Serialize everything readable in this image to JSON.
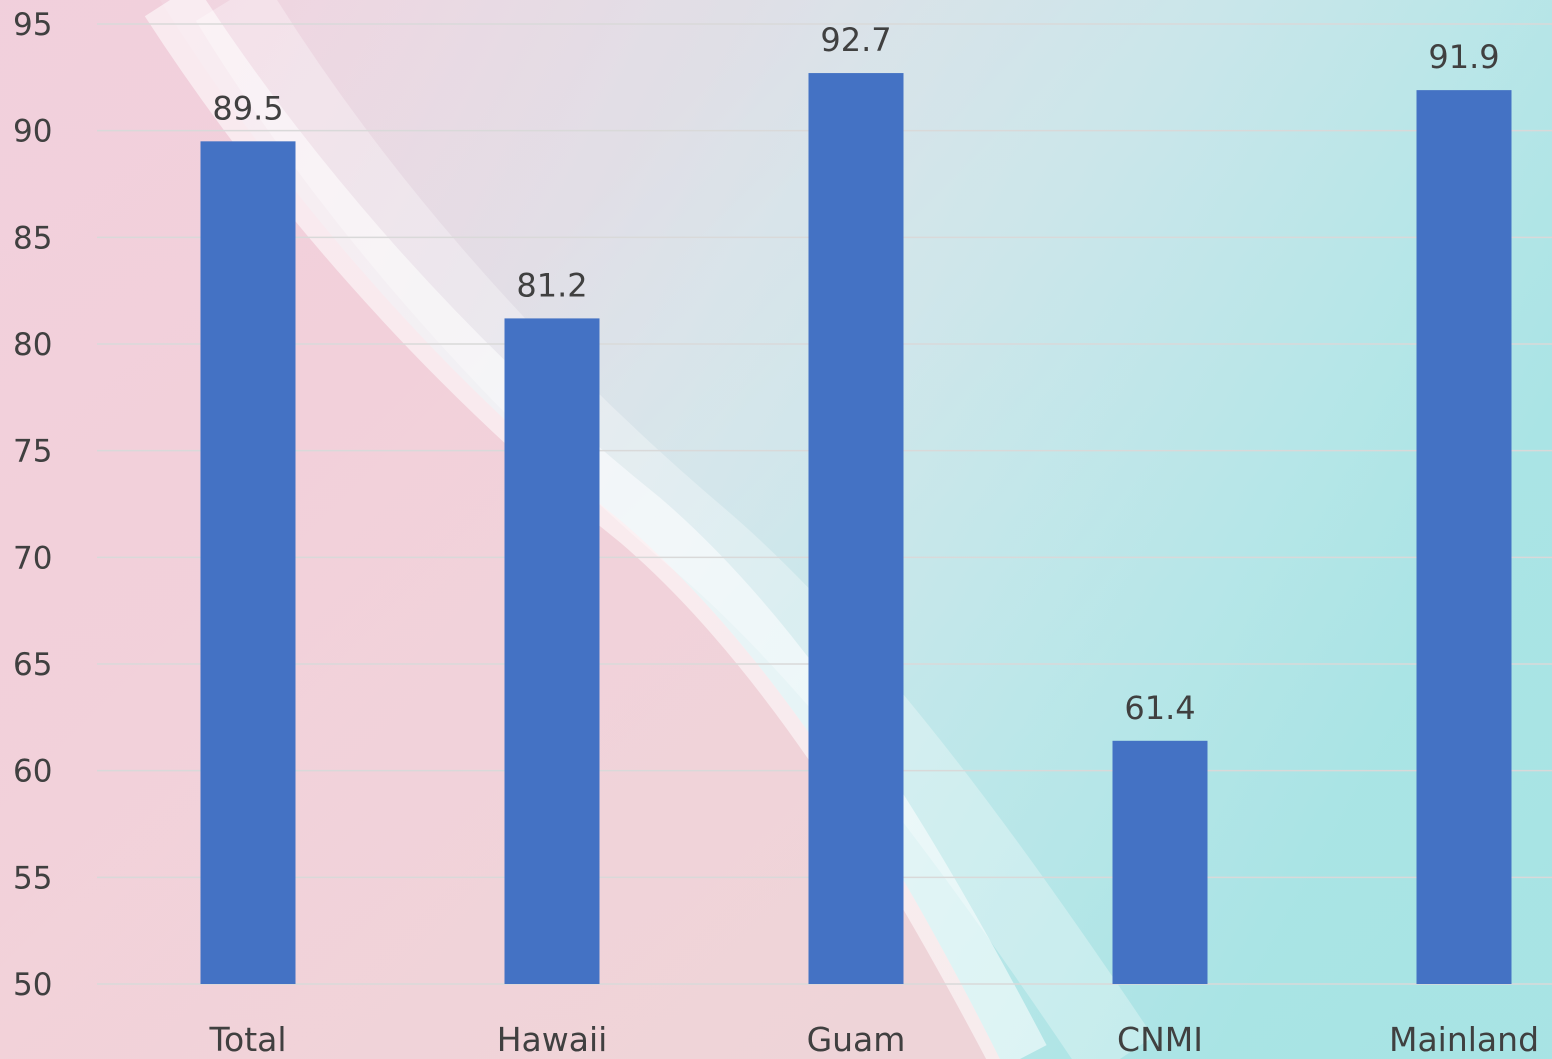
{
  "chart_data": {
    "type": "bar",
    "categories": [
      "Total",
      "Hawaii",
      "Guam",
      "CNMI",
      "Mainland"
    ],
    "values": [
      89.5,
      81.2,
      92.7,
      61.4,
      91.9
    ],
    "title": "",
    "xlabel": "",
    "ylabel": "",
    "ylim": [
      50,
      95
    ],
    "yticks": [
      50,
      55,
      60,
      65,
      70,
      75,
      80,
      85,
      90,
      95
    ],
    "grid": true,
    "legend": "none",
    "bar_color": "#4472c4",
    "gridline_color": "#d9d9d9",
    "text_color": "#404040",
    "background": "beach-photo"
  }
}
